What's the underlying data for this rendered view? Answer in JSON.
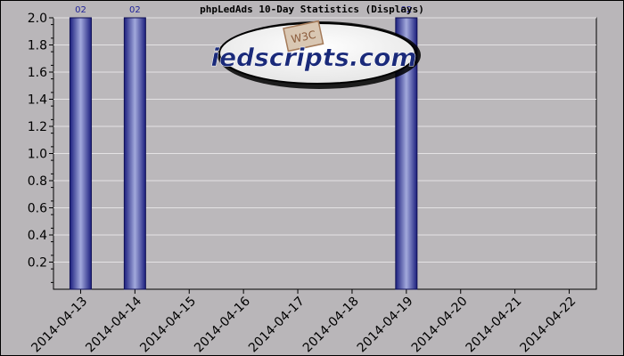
{
  "chart_data": {
    "type": "bar",
    "title": "phpLedAds 10-Day Statistics (Displays)",
    "categories": [
      "2014-04-13",
      "2014-04-14",
      "2014-04-15",
      "2014-04-16",
      "2014-04-17",
      "2014-04-18",
      "2014-04-19",
      "2014-04-20",
      "2014-04-21",
      "2014-04-22"
    ],
    "values": [
      2,
      2,
      0,
      0,
      0,
      0,
      2,
      0,
      0,
      0
    ],
    "data_labels": [
      "02",
      "02",
      "",
      "",
      "",
      "",
      "02",
      "",
      "",
      ""
    ],
    "y_ticks": [
      "2.0",
      "1.8",
      "1.6",
      "1.4",
      "1.2",
      "1.0",
      "0.8",
      "0.6",
      "0.4",
      "0.2"
    ],
    "ylim": [
      0,
      2
    ],
    "grid": true,
    "xlabel": "",
    "ylabel": ""
  },
  "watermark": {
    "text": "iedscripts.com",
    "badge": "W3C"
  },
  "colors": {
    "background": "#b9b6b9",
    "plot": "#bbb8bb",
    "grid": "#e4e2e4",
    "bar_dark": "#1c1f7e",
    "bar_light": "#a2a9dc",
    "text": "#000000",
    "bar_label": "#22249a"
  }
}
